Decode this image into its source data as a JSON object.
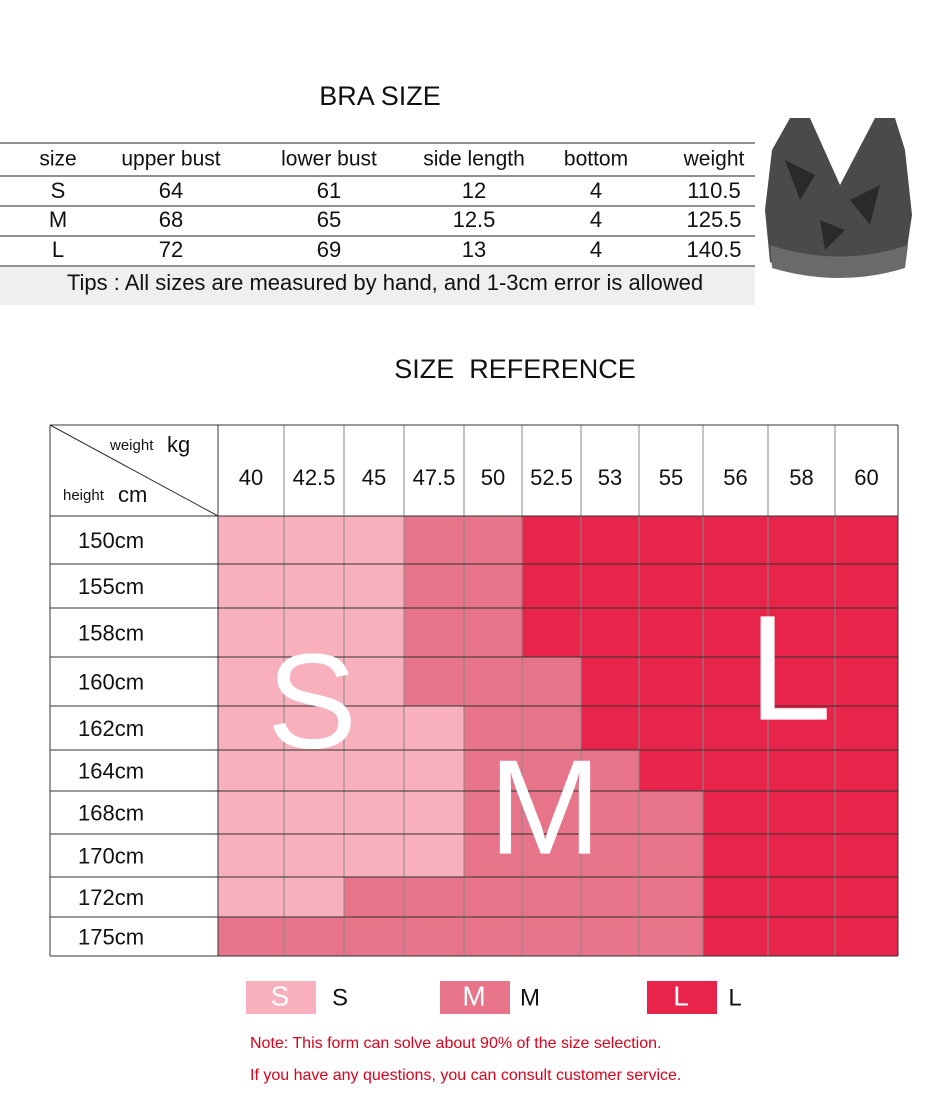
{
  "bra_size": {
    "title": "BRA SIZE",
    "columns": [
      "size",
      "upper bust",
      "lower bust",
      "side length",
      "bottom",
      "weight"
    ],
    "rows": [
      [
        "S",
        "64",
        "61",
        "12",
        "4",
        "110.5"
      ],
      [
        "M",
        "68",
        "65",
        "12.5",
        "4",
        "125.5"
      ],
      [
        "L",
        "72",
        "69",
        "13",
        "4",
        "140.5"
      ]
    ],
    "tips": "Tips : All sizes are measured by hand, and 1-3cm error is allowed"
  },
  "size_reference": {
    "title": "SIZE  REFERENCE",
    "corner": {
      "weight": "weight",
      "weight_unit": "kg",
      "height": "height",
      "height_unit": "cm"
    },
    "weights": [
      "40",
      "42.5",
      "45",
      "47.5",
      "50",
      "52.5",
      "53",
      "55",
      "56",
      "58",
      "60"
    ],
    "heights": [
      "150cm",
      "155cm",
      "158cm",
      "160cm",
      "162cm",
      "164cm",
      "168cm",
      "170cm",
      "172cm",
      "175cm"
    ],
    "cells": [
      [
        "S",
        "S",
        "S",
        "M",
        "M",
        "L",
        "L",
        "L",
        "L",
        "L",
        "L"
      ],
      [
        "S",
        "S",
        "S",
        "M",
        "M",
        "L",
        "L",
        "L",
        "L",
        "L",
        "L"
      ],
      [
        "S",
        "S",
        "S",
        "M",
        "M",
        "L",
        "L",
        "L",
        "L",
        "L",
        "L"
      ],
      [
        "S",
        "S",
        "S",
        "M",
        "M",
        "M",
        "L",
        "L",
        "L",
        "L",
        "L"
      ],
      [
        "S",
        "S",
        "S",
        "S",
        "M",
        "M",
        "L",
        "L",
        "L",
        "L",
        "L"
      ],
      [
        "S",
        "S",
        "S",
        "S",
        "M",
        "M",
        "M",
        "L",
        "L",
        "L",
        "L"
      ],
      [
        "S",
        "S",
        "S",
        "S",
        "M",
        "M",
        "M",
        "M",
        "L",
        "L",
        "L"
      ],
      [
        "S",
        "S",
        "S",
        "S",
        "M",
        "M",
        "M",
        "M",
        "L",
        "L",
        "L"
      ],
      [
        "S",
        "S",
        "M",
        "M",
        "M",
        "M",
        "M",
        "M",
        "L",
        "L",
        "L"
      ],
      [
        "M",
        "M",
        "M",
        "M",
        "M",
        "M",
        "M",
        "M",
        "L",
        "L",
        "L"
      ]
    ],
    "overlay": [
      "S",
      "M",
      "L"
    ],
    "legend": [
      {
        "swatch": "S",
        "label": "S",
        "color": "#f7b0bc"
      },
      {
        "swatch": "M",
        "label": "M",
        "color": "#e8748a"
      },
      {
        "swatch": "L",
        "label": "L",
        "color": "#e8244a"
      }
    ]
  },
  "notes": [
    "Note: This form can solve about 90% of the size selection.",
    "If you have any questions, you can consult customer service."
  ]
}
